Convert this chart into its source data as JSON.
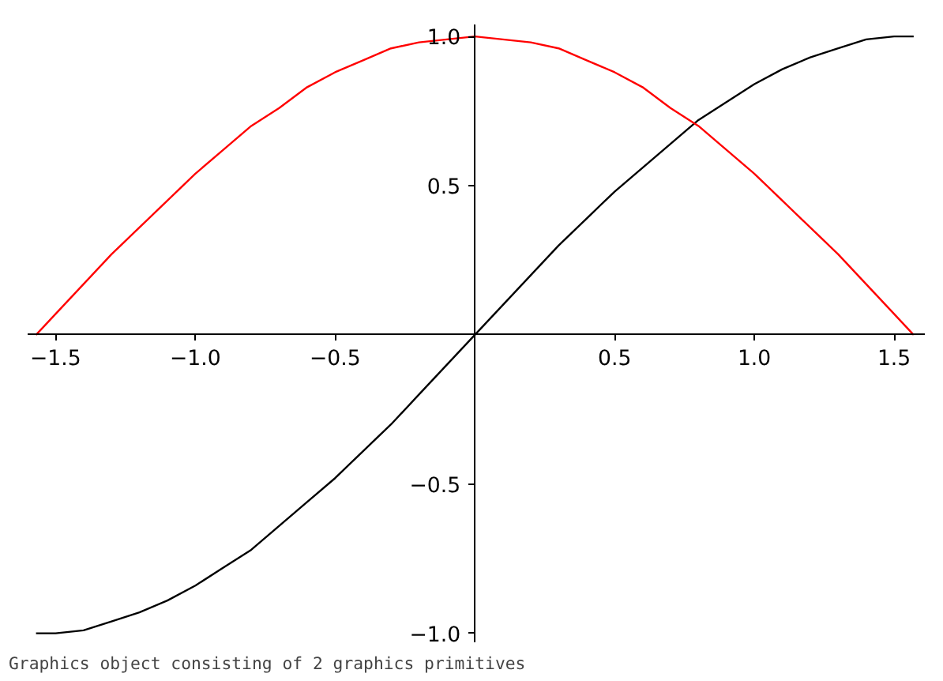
{
  "chart_data": {
    "type": "line",
    "x": [
      -1.57,
      -1.5,
      -1.4,
      -1.3,
      -1.2,
      -1.1,
      -1.0,
      -0.9,
      -0.8,
      -0.7,
      -0.6,
      -0.5,
      -0.4,
      -0.3,
      -0.2,
      -0.1,
      0,
      0.1,
      0.2,
      0.3,
      0.4,
      0.5,
      0.6,
      0.7,
      0.8,
      0.9,
      1.0,
      1.1,
      1.2,
      1.3,
      1.4,
      1.5,
      1.57
    ],
    "series": [
      {
        "color": "#000000",
        "values": [
          -1.0,
          -1.0,
          -0.99,
          -0.96,
          -0.93,
          -0.89,
          -0.84,
          -0.78,
          -0.72,
          -0.64,
          -0.56,
          -0.48,
          -0.39,
          -0.3,
          -0.2,
          -0.1,
          0,
          0.1,
          0.2,
          0.3,
          0.39,
          0.48,
          0.56,
          0.64,
          0.72,
          0.78,
          0.84,
          0.89,
          0.93,
          0.96,
          0.99,
          1.0,
          1.0
        ]
      },
      {
        "color": "#ff0000",
        "values": [
          0.0,
          0.07,
          0.17,
          0.27,
          0.36,
          0.45,
          0.54,
          0.62,
          0.7,
          0.76,
          0.83,
          0.88,
          0.92,
          0.96,
          0.98,
          0.99,
          1.0,
          0.99,
          0.98,
          0.96,
          0.92,
          0.88,
          0.83,
          0.76,
          0.7,
          0.62,
          0.54,
          0.45,
          0.36,
          0.27,
          0.17,
          0.07,
          0.0
        ]
      }
    ],
    "xlim": [
      -1.6,
      1.61
    ],
    "ylim": [
      -1.03,
      1.04
    ],
    "xticks": [
      {
        "value": -1.5,
        "label": "−1.5"
      },
      {
        "value": -1.0,
        "label": "−1.0"
      },
      {
        "value": -0.5,
        "label": "−0.5"
      },
      {
        "value": 0,
        "label": null
      },
      {
        "value": 0.5,
        "label": "0.5"
      },
      {
        "value": 1.0,
        "label": "1.0"
      },
      {
        "value": 1.5,
        "label": "1.5"
      }
    ],
    "yticks": [
      {
        "value": -1.0,
        "label": "−1.0"
      },
      {
        "value": -0.5,
        "label": "−0.5"
      },
      {
        "value": 0,
        "label": null
      },
      {
        "value": 0.5,
        "label": "0.5"
      },
      {
        "value": 1.0,
        "label": "1.0"
      }
    ],
    "grid": false,
    "marker": "none",
    "line_style": "solid",
    "annotations": [
      "Graphics object consisting of 2 graphics primitives"
    ]
  }
}
